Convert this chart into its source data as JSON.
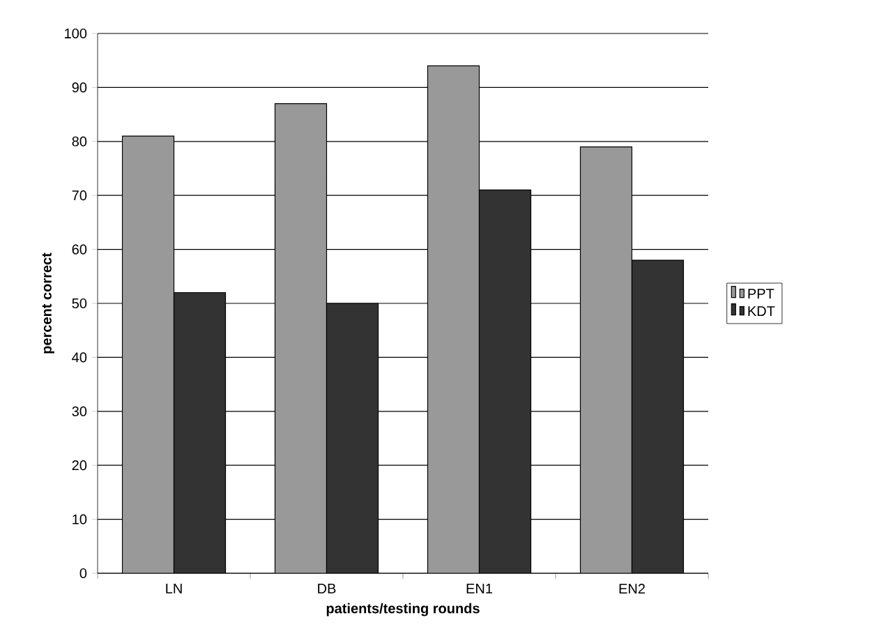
{
  "chart_data": {
    "type": "bar",
    "xlabel": "patients/testing rounds",
    "ylabel": "percent correct",
    "categories": [
      "LN",
      "DB",
      "EN1",
      "EN2"
    ],
    "series": [
      {
        "name": "PPT",
        "color": "#999999",
        "values": [
          81,
          87,
          94,
          79
        ]
      },
      {
        "name": "KDT",
        "color": "#333333",
        "values": [
          52,
          50,
          71,
          58
        ]
      }
    ],
    "ylim": [
      0,
      100
    ],
    "yticks": [
      0,
      10,
      20,
      30,
      40,
      50,
      60,
      70,
      80,
      90,
      100
    ],
    "grid": "y",
    "legend": "right"
  }
}
